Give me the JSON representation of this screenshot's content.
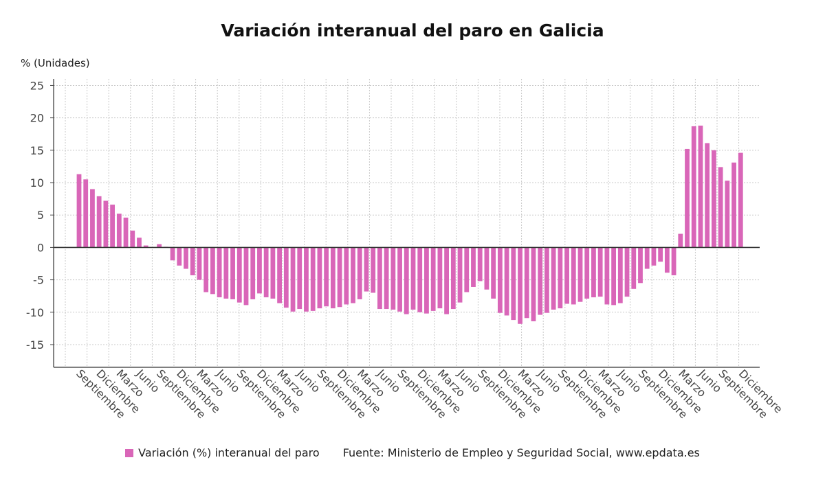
{
  "chart_data": {
    "type": "bar",
    "title": "Variación interanual del paro en Galicia",
    "ylabel": "% (Unidades)",
    "ylim": [
      -18.5,
      26
    ],
    "yticks": [
      25,
      20,
      15,
      10,
      5,
      0,
      -5,
      -10,
      -15
    ],
    "grid": true,
    "legend_position": "bottom",
    "x_tick_labels": [
      "Septiembre",
      "Diciembre",
      "Marzo",
      "Junio",
      "Septiembre",
      "Diciembre",
      "Marzo",
      "Junio",
      "Septiembre",
      "Diciembre",
      "Marzo",
      "Junio",
      "Septiembre",
      "Diciembre",
      "Marzo",
      "Junio",
      "Septiembre",
      "Diciembre",
      "Marzo",
      "Junio",
      "Septiembre",
      "Diciembre",
      "Marzo",
      "Junio",
      "Septiembre",
      "Diciembre",
      "Marzo",
      "Junio",
      "Septiembre",
      "Diciembre",
      "Marzo",
      "Junio",
      "Septiembre",
      "Diciembre"
    ],
    "series": [
      {
        "name": "Variación (%) interanual del paro",
        "color": "#d966b8",
        "values": [
          11.3,
          10.5,
          9.0,
          7.9,
          7.2,
          6.6,
          5.2,
          4.6,
          2.6,
          1.5,
          0.3,
          0.0,
          0.5,
          0.1,
          -2.0,
          -2.8,
          -3.3,
          -4.3,
          -5.0,
          -6.9,
          -7.2,
          -7.7,
          -7.9,
          -8.0,
          -8.5,
          -8.9,
          -8.0,
          -7.1,
          -7.7,
          -7.9,
          -8.6,
          -9.3,
          -9.9,
          -9.5,
          -9.9,
          -9.8,
          -9.4,
          -9.1,
          -9.4,
          -9.2,
          -8.8,
          -8.6,
          -8.0,
          -6.8,
          -7.0,
          -9.5,
          -9.5,
          -9.6,
          -9.9,
          -10.3,
          -9.6,
          -10.0,
          -10.2,
          -9.8,
          -9.4,
          -10.3,
          -9.5,
          -8.5,
          -6.9,
          -6.1,
          -5.2,
          -6.5,
          -7.9,
          -10.1,
          -10.5,
          -11.2,
          -11.8,
          -10.9,
          -11.4,
          -10.4,
          -10.1,
          -9.6,
          -9.4,
          -8.7,
          -8.8,
          -8.4,
          -7.9,
          -7.7,
          -7.6,
          -8.8,
          -8.9,
          -8.6,
          -7.6,
          -6.4,
          -5.5,
          -3.3,
          -2.8,
          -2.2,
          -3.9,
          -4.3,
          2.1,
          15.2,
          18.7,
          18.8,
          16.1,
          15.0,
          12.4,
          10.3,
          13.1,
          14.6
        ]
      }
    ]
  },
  "legend": {
    "series_label": "Variación (%) interanual del paro",
    "source": "Fuente: Ministerio de Empleo y Seguridad Social, www.epdata.es"
  }
}
